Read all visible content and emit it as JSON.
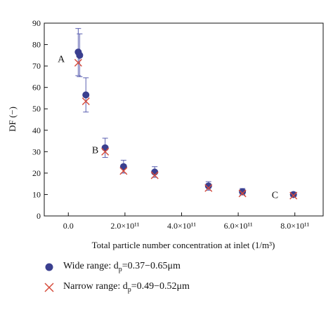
{
  "chart_data": {
    "type": "scatter",
    "xlabel": "Total particle number concentration at inlet (1/m³)",
    "ylabel": "DF (−)",
    "xlim": [
      -0.85,
      9.0
    ],
    "ylim": [
      0,
      90
    ],
    "xscale_unit": "×10^11",
    "x_ticks": [
      {
        "value": 0.0,
        "label": "0.0"
      },
      {
        "value": 2.0,
        "label": "2.0×10¹¹"
      },
      {
        "value": 4.0,
        "label": "4.0×10¹¹"
      },
      {
        "value": 6.0,
        "label": "6.0×10¹¹"
      },
      {
        "value": 8.0,
        "label": "8.0×10¹¹"
      }
    ],
    "y_ticks": [
      0,
      10,
      20,
      30,
      40,
      50,
      60,
      70,
      80,
      90
    ],
    "grid": false,
    "legend_position": "below plot",
    "series": [
      {
        "name": "Wide range: dp=0.37−0.65μm",
        "marker": "circle",
        "color": "#3a3f8f",
        "points": [
          {
            "x": 0.35,
            "y": 76.5,
            "err": 11
          },
          {
            "x": 0.4,
            "y": 75.0,
            "err": 10
          },
          {
            "x": 0.62,
            "y": 56.5,
            "err": 8
          },
          {
            "x": 1.3,
            "y": 31.8,
            "err": 4.5
          },
          {
            "x": 1.95,
            "y": 23.0,
            "err": 3
          },
          {
            "x": 3.05,
            "y": 20.5,
            "err": 2.5
          },
          {
            "x": 4.95,
            "y": 14.0,
            "err": 2
          },
          {
            "x": 6.15,
            "y": 11.3,
            "err": 1.5
          },
          {
            "x": 7.95,
            "y": 10.0,
            "err": 1
          }
        ]
      },
      {
        "name": "Narrow range: dp=0.49−0.52μm",
        "marker": "x",
        "color": "#d64a3a",
        "points": [
          {
            "x": 0.35,
            "y": 71.5
          },
          {
            "x": 0.62,
            "y": 53.5
          },
          {
            "x": 1.3,
            "y": 30.0
          },
          {
            "x": 1.95,
            "y": 21.0
          },
          {
            "x": 3.05,
            "y": 19.0
          },
          {
            "x": 4.95,
            "y": 13.0
          },
          {
            "x": 6.15,
            "y": 10.5
          },
          {
            "x": 7.95,
            "y": 9.5
          }
        ]
      }
    ],
    "annotations": [
      {
        "text": "A",
        "x": -0.25,
        "y": 73.5
      },
      {
        "text": "B",
        "x": 0.95,
        "y": 31.0
      },
      {
        "text": "C",
        "x": 7.3,
        "y": 10.0
      }
    ]
  },
  "legend": {
    "wide_prefix": "Wide range: d",
    "wide_sub": "p",
    "wide_suffix": "=0.37−0.65μm",
    "narrow_prefix": "Narrow range: d",
    "narrow_sub": "p",
    "narrow_suffix": "=0.49−0.52μm"
  }
}
